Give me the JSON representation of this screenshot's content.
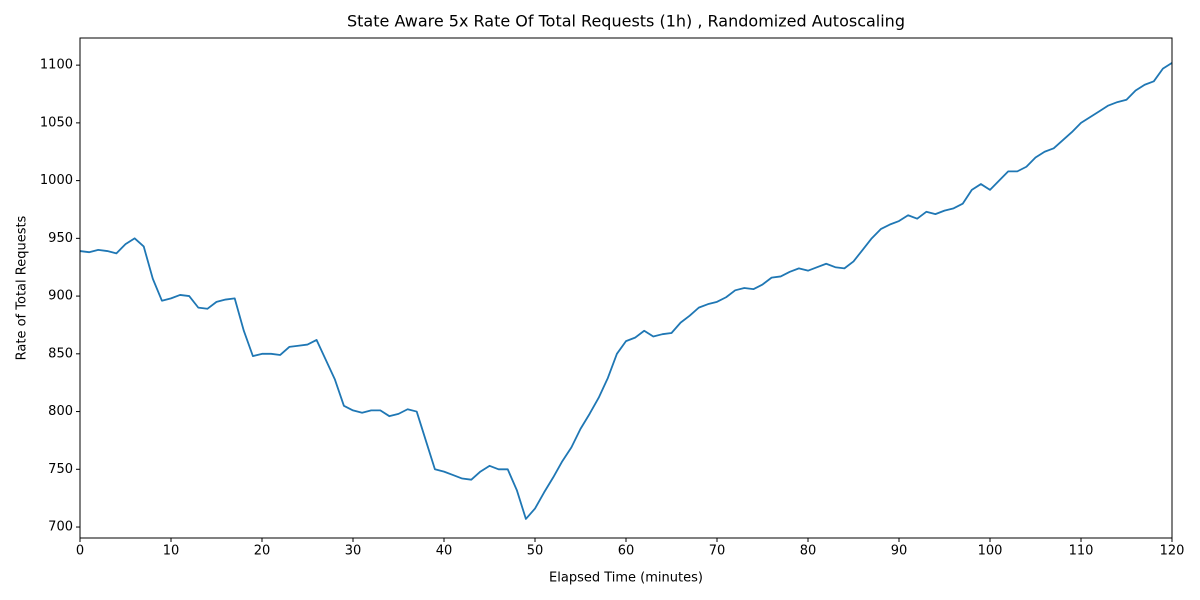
{
  "chart_data": {
    "type": "line",
    "title": "State Aware 5x Rate Of Total Requests (1h) , Randomized Autoscaling",
    "x_label": "Elapsed Time (minutes)",
    "y_label": "Rate of Total Requests",
    "x": [
      0,
      1,
      2,
      3,
      4,
      5,
      6,
      7,
      8,
      9,
      10,
      11,
      12,
      13,
      14,
      15,
      16,
      17,
      18,
      19,
      20,
      21,
      22,
      23,
      24,
      25,
      26,
      27,
      28,
      29,
      30,
      31,
      32,
      33,
      34,
      35,
      36,
      37,
      38,
      39,
      40,
      41,
      42,
      43,
      44,
      45,
      46,
      47,
      48,
      49,
      50,
      51,
      52,
      53,
      54,
      55,
      56,
      57,
      58,
      59,
      60,
      61,
      62,
      63,
      64,
      65,
      66,
      67,
      68,
      69,
      70,
      71,
      72,
      73,
      74,
      75,
      76,
      77,
      78,
      79,
      80,
      81,
      82,
      83,
      84,
      85,
      86,
      87,
      88,
      89,
      90,
      91,
      92,
      93,
      94,
      95,
      96,
      97,
      98,
      99,
      100,
      101,
      102,
      103,
      104,
      105,
      106,
      107,
      108,
      109,
      110,
      111,
      112,
      113,
      114,
      115,
      116,
      117,
      118,
      119,
      120
    ],
    "series": [
      {
        "name": "Rate of Total Requests",
        "color": "#1f77b4",
        "values": [
          939,
          938,
          940,
          939,
          937,
          945,
          950,
          943,
          915,
          896,
          898,
          901,
          900,
          890,
          889,
          895,
          897,
          898,
          870,
          848,
          850,
          850,
          849,
          856,
          857,
          858,
          862,
          845,
          828,
          805,
          801,
          799,
          801,
          801,
          796,
          798,
          802,
          800,
          775,
          750,
          748,
          745,
          742,
          741,
          748,
          753,
          750,
          750,
          732,
          707,
          716,
          730,
          743,
          757,
          769,
          785,
          798,
          812,
          829,
          850,
          861,
          864,
          870,
          865,
          867,
          868,
          877,
          883,
          890,
          893,
          895,
          899,
          905,
          907,
          906,
          910,
          916,
          917,
          921,
          924,
          922,
          925,
          928,
          925,
          924,
          930,
          940,
          950,
          958,
          962,
          965,
          970,
          967,
          973,
          971,
          974,
          976,
          980,
          992,
          997,
          992,
          1000,
          1008,
          1008,
          1012,
          1020,
          1025,
          1028,
          1035,
          1042,
          1050,
          1055,
          1060,
          1065,
          1068,
          1070,
          1078,
          1083,
          1086,
          1097,
          1102
        ]
      }
    ],
    "xlim": [
      0,
      120
    ],
    "xticks": [
      0,
      10,
      20,
      30,
      40,
      50,
      60,
      70,
      80,
      90,
      100,
      110,
      120
    ],
    "ylim": [
      690.5,
      1123.5
    ],
    "yticks": [
      700,
      750,
      800,
      850,
      900,
      950,
      1000,
      1050,
      1100
    ],
    "grid": false
  }
}
